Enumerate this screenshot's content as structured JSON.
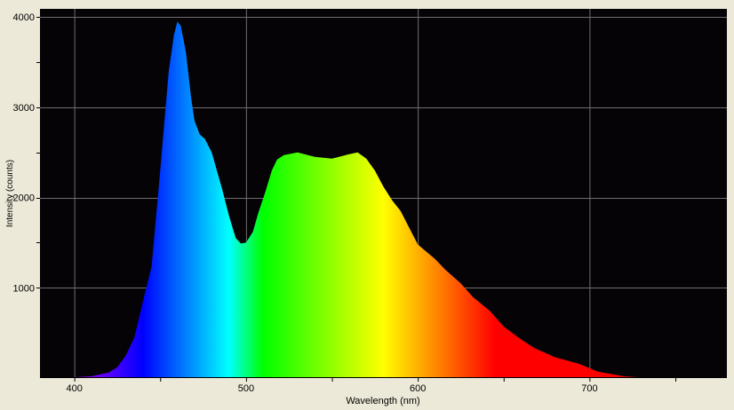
{
  "chart_data": {
    "type": "area",
    "title": "",
    "xlabel": "Wavelength (nm)",
    "ylabel": "Intensity (counts)",
    "xlim": [
      380,
      780
    ],
    "ylim": [
      0,
      4090
    ],
    "x_ticks": [
      400,
      500,
      600,
      700
    ],
    "x_minor_ticks": [
      450,
      550,
      650,
      750
    ],
    "y_ticks": [
      1000,
      2000,
      3000,
      4000
    ],
    "y_minor_ticks": [
      1500,
      2500,
      3500
    ],
    "x_tick_labels": [
      "400",
      "500",
      "600",
      "700"
    ],
    "y_tick_labels": [
      "1000",
      "2000",
      "3000",
      "4000"
    ],
    "grid": true,
    "legend": "none",
    "fill": "spectral colour by wavelength",
    "colors": {
      "plot_background": "#050306",
      "grid": "#6e6e6e",
      "page_background": "#ECE9D8"
    },
    "series": [
      {
        "x": [
          395,
          400,
          410,
          420,
          425,
          430,
          435,
          440,
          445,
          450,
          455,
          458,
          460,
          462,
          465,
          468,
          470,
          473,
          476,
          480,
          483,
          486,
          490,
          494,
          497,
          500,
          504,
          507,
          511,
          515,
          518,
          522,
          530,
          540,
          550,
          560,
          565,
          570,
          575,
          580,
          585,
          590,
          600,
          610,
          616,
          625,
          632,
          642,
          650,
          660,
          668,
          680,
          694,
          705,
          720,
          730,
          740
        ],
        "y": [
          5,
          10,
          20,
          60,
          120,
          250,
          450,
          850,
          1235,
          2300,
          3400,
          3800,
          3950,
          3900,
          3600,
          3100,
          2850,
          2700,
          2650,
          2500,
          2300,
          2100,
          1800,
          1550,
          1490,
          1500,
          1620,
          1820,
          2050,
          2300,
          2420,
          2470,
          2500,
          2450,
          2430,
          2480,
          2500,
          2430,
          2300,
          2120,
          1970,
          1850,
          1480,
          1320,
          1200,
          1050,
          900,
          745,
          570,
          430,
          330,
          230,
          157,
          70,
          20,
          8,
          0
        ]
      }
    ]
  }
}
